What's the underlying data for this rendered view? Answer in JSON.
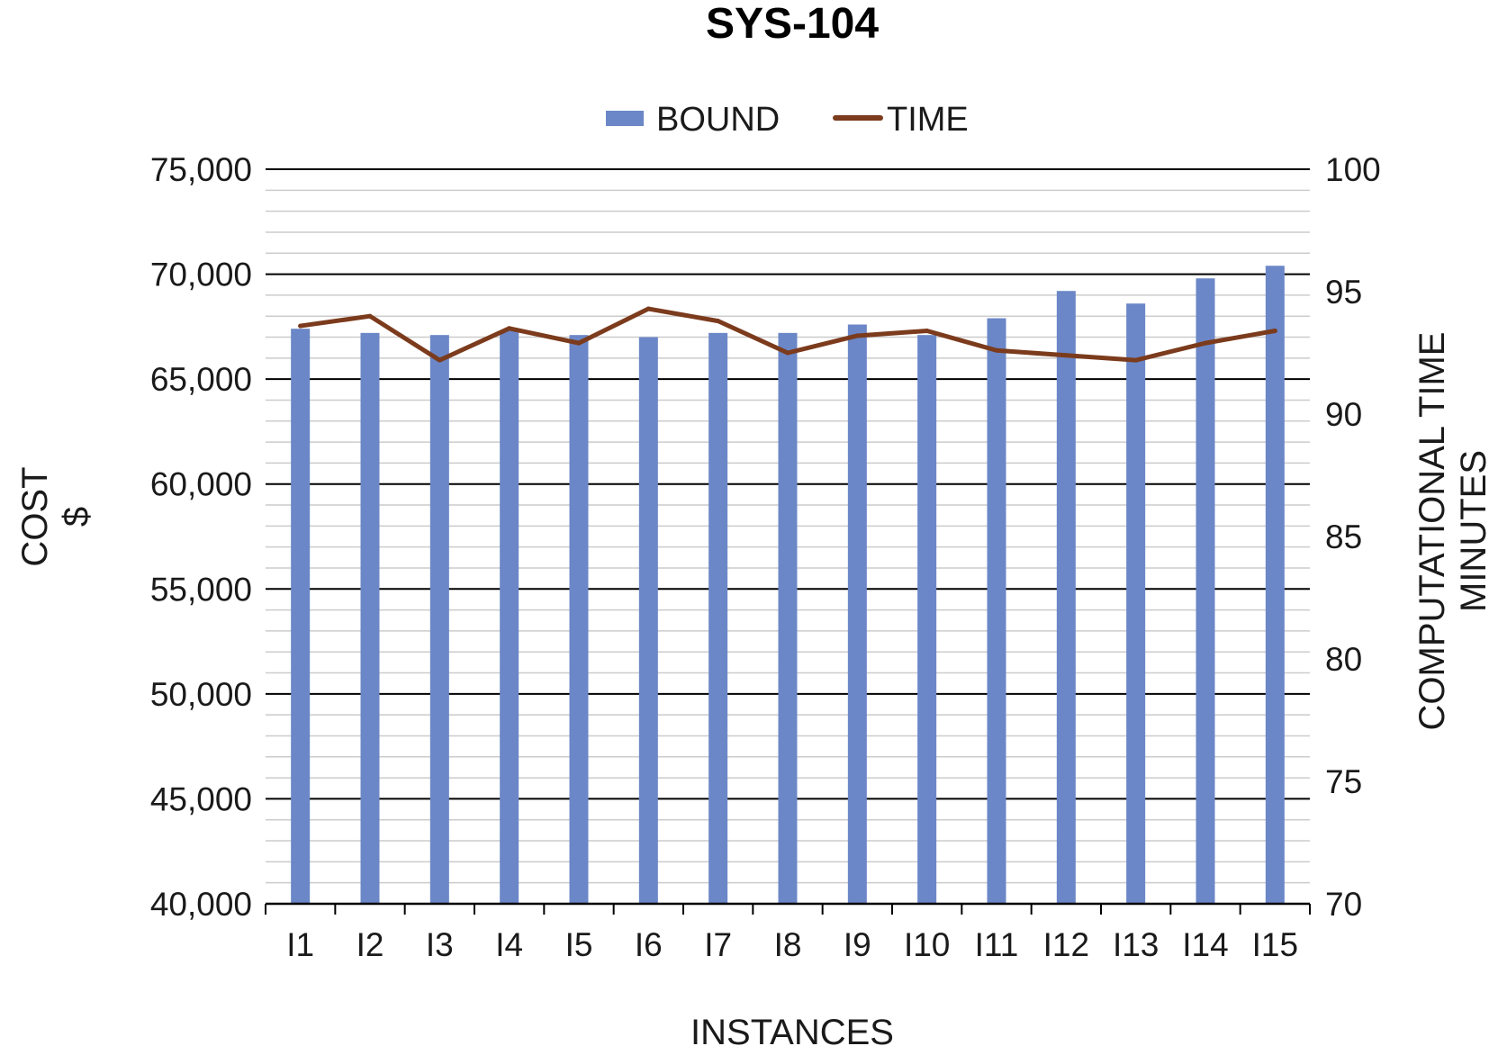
{
  "chart_data": {
    "type": "bar",
    "title": "SYS-104",
    "xlabel": "INSTANCES",
    "ylabel": [
      "COST",
      "$"
    ],
    "y2label": [
      "COMPUTATIONAL TIME",
      "MINUTES"
    ],
    "categories": [
      "I1",
      "I2",
      "I3",
      "I4",
      "I5",
      "I6",
      "I7",
      "I8",
      "I9",
      "I10",
      "I11",
      "I12",
      "I13",
      "I14",
      "I15"
    ],
    "ylim": [
      40000,
      75000
    ],
    "yticks": [
      40000,
      45000,
      50000,
      55000,
      60000,
      65000,
      70000,
      75000
    ],
    "ytick_labels": [
      "40,000",
      "45,000",
      "50,000",
      "55,000",
      "60,000",
      "65,000",
      "70,000",
      "75,000"
    ],
    "y2lim": [
      70,
      100
    ],
    "y2ticks": [
      70,
      75,
      80,
      85,
      90,
      95,
      100
    ],
    "y2tick_labels": [
      "70",
      "75",
      "80",
      "85",
      "90",
      "95",
      "100"
    ],
    "grid": true,
    "legend_position": "top-center",
    "series": [
      {
        "name": "BOUND",
        "type": "bar",
        "axis": "left",
        "color": "#6b87c7",
        "values": [
          67400,
          67200,
          67100,
          67300,
          67100,
          67000,
          67200,
          67200,
          67600,
          67100,
          67900,
          69200,
          68600,
          69800,
          70400
        ]
      },
      {
        "name": "TIME",
        "type": "line",
        "axis": "right",
        "color": "#7b3b1c",
        "values": [
          93.6,
          94.0,
          92.2,
          93.5,
          92.9,
          94.3,
          93.8,
          92.5,
          93.2,
          93.4,
          92.6,
          92.4,
          92.2,
          92.9,
          93.4
        ]
      }
    ]
  }
}
